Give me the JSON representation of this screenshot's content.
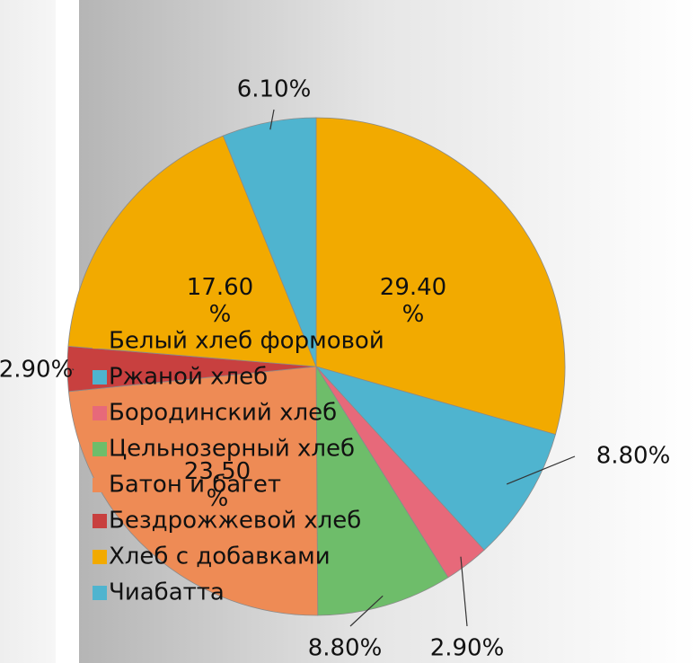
{
  "chart_data": {
    "type": "pie",
    "categories": [
      "Белый хлеб формовой",
      "Ржаной хлеб",
      "Бородинский хлеб",
      "Цельнозерный хлеб",
      "Батон и багет",
      "Бездрожжевой хлеб",
      "Хлеб с добавками",
      "Чиабатта"
    ],
    "values": [
      29.4,
      8.8,
      2.9,
      8.8,
      23.5,
      2.9,
      17.6,
      6.1
    ],
    "value_labels": [
      "29.40 %",
      "8.80%",
      "2.90%",
      "8.80%",
      "23.50 %",
      "2.90%",
      "17.60 %",
      "6.10%"
    ],
    "colors": [
      "#f2aa00",
      "#4fb4cf",
      "#e7697a",
      "#6ebd6a",
      "#ee8b55",
      "#c8403f",
      "#f2aa00",
      "#4fb4cf"
    ],
    "legend": "left"
  }
}
